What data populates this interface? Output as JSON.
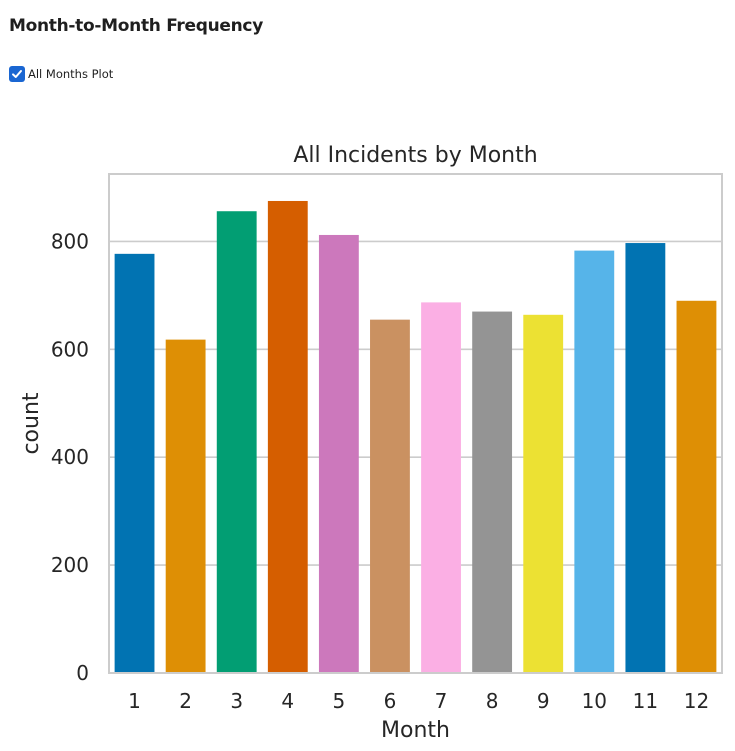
{
  "header": {
    "title": "Month-to-Month Frequency"
  },
  "controls": {
    "all_months_label": "All Months Plot",
    "all_months_checked": true
  },
  "chart_data": {
    "type": "bar",
    "title": "All Incidents by Month",
    "xlabel": "Month",
    "ylabel": "count",
    "categories": [
      "1",
      "2",
      "3",
      "4",
      "5",
      "6",
      "7",
      "8",
      "9",
      "10",
      "11",
      "12"
    ],
    "values": [
      777,
      618,
      856,
      875,
      812,
      655,
      687,
      670,
      664,
      783,
      797,
      690
    ],
    "ylim": [
      0,
      925
    ],
    "yticks": [
      0,
      200,
      400,
      600,
      800
    ],
    "grid": true,
    "colors": [
      "#0173b2",
      "#de8f05",
      "#029e73",
      "#d55e00",
      "#cc78bc",
      "#ca9161",
      "#fbafe4",
      "#949494",
      "#ece133",
      "#56b4e9",
      "#0173b2",
      "#de8f05"
    ]
  }
}
